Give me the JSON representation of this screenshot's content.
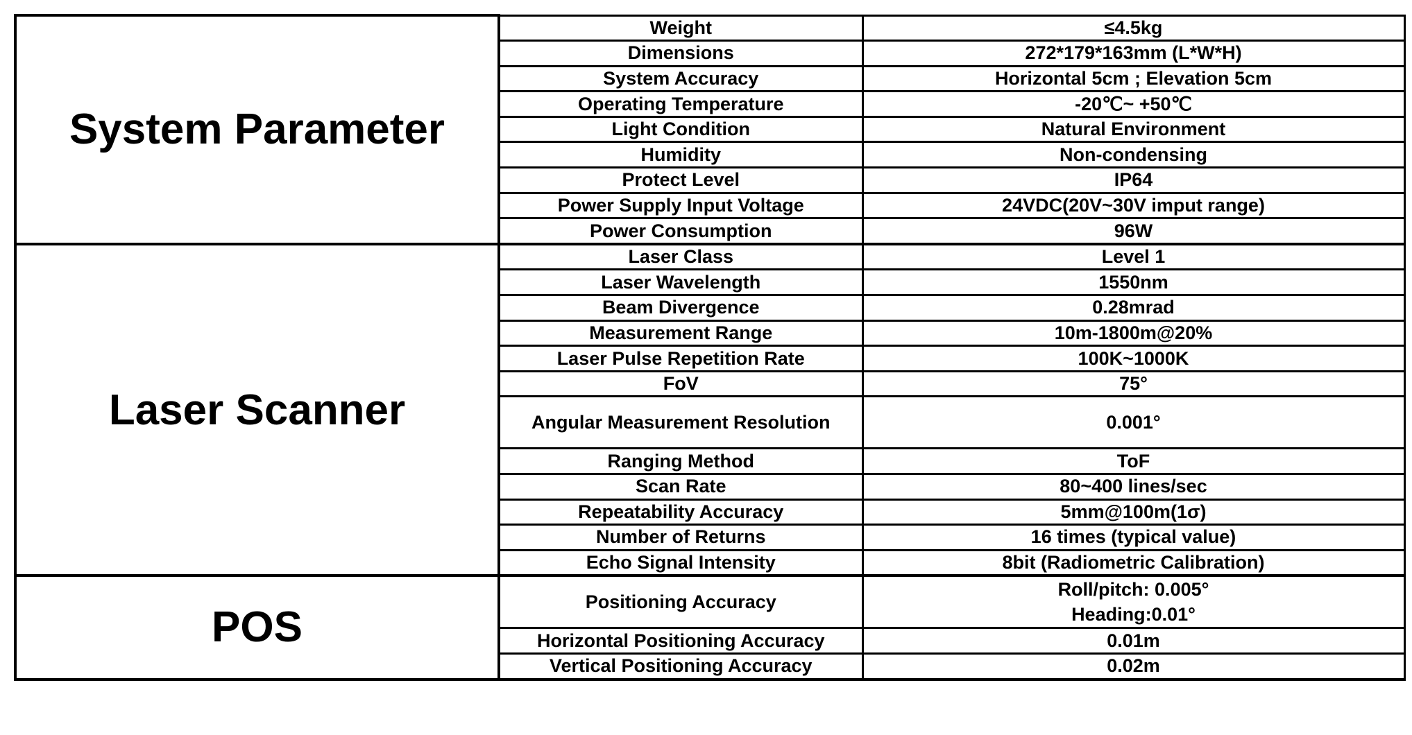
{
  "sections": [
    {
      "title": "System Parameter",
      "rows": [
        {
          "param": "Weight",
          "value": [
            "≤4.5kg"
          ]
        },
        {
          "param": "Dimensions",
          "value": [
            "272*179*163mm (L*W*H)"
          ]
        },
        {
          "param": "System Accuracy",
          "value": [
            "Horizontal 5cm ; Elevation 5cm"
          ]
        },
        {
          "param": "Operating Temperature",
          "value": [
            "-20℃~ +50℃"
          ]
        },
        {
          "param": "Light Condition",
          "value": [
            "Natural Environment"
          ]
        },
        {
          "param": "Humidity",
          "value": [
            "Non-condensing"
          ]
        },
        {
          "param": "Protect Level",
          "value": [
            "IP64"
          ]
        },
        {
          "param": "Power Supply Input Voltage",
          "value": [
            "24VDC(20V~30V imput range)"
          ]
        },
        {
          "param": "Power Consumption",
          "value": [
            "96W"
          ]
        }
      ]
    },
    {
      "title": "Laser Scanner",
      "rows": [
        {
          "param": "Laser Class",
          "value": [
            "Level 1"
          ]
        },
        {
          "param": "Laser Wavelength",
          "value": [
            "1550nm"
          ]
        },
        {
          "param": "Beam Divergence",
          "value": [
            "0.28mrad"
          ]
        },
        {
          "param": "Measurement Range",
          "value": [
            "10m-1800m@20%"
          ]
        },
        {
          "param": "Laser Pulse Repetition Rate",
          "value": [
            "100K~1000K"
          ]
        },
        {
          "param": "FoV",
          "value": [
            "75°"
          ]
        },
        {
          "param": "Angular Measurement Resolution",
          "value": [
            "0.001°"
          ],
          "tall": true
        },
        {
          "param": "Ranging Method",
          "value": [
            "ToF"
          ]
        },
        {
          "param": "Scan Rate",
          "value": [
            "80~400 lines/sec"
          ]
        },
        {
          "param": "Repeatability Accuracy",
          "value": [
            "5mm@100m(1σ)"
          ]
        },
        {
          "param": "Number of Returns",
          "value": [
            "16 times (typical value)"
          ]
        },
        {
          "param": "Echo Signal Intensity",
          "value": [
            "8bit (Radiometric Calibration)"
          ]
        }
      ]
    },
    {
      "title": "POS",
      "rows": [
        {
          "param": "Positioning Accuracy",
          "value": [
            "Roll/pitch:  0.005°",
            "Heading:0.01°"
          ],
          "tall": true
        },
        {
          "param": "Horizontal Positioning Accuracy",
          "value": [
            "0.01m"
          ]
        },
        {
          "param": "Vertical Positioning Accuracy",
          "value": [
            "0.02m"
          ]
        }
      ]
    }
  ]
}
